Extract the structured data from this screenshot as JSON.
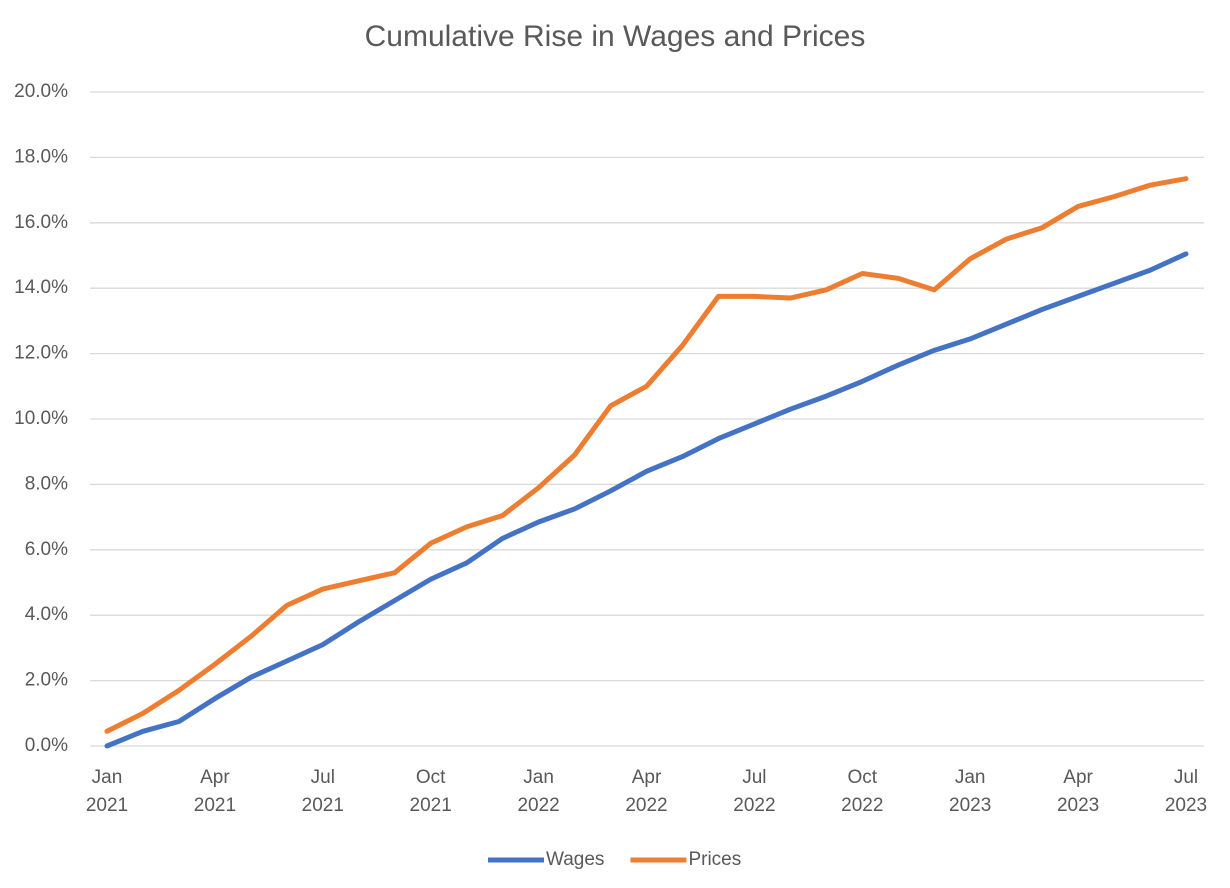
{
  "chart_data": {
    "type": "line",
    "title": "Cumulative Rise in Wages and Prices",
    "categories": [
      "Jan\n2021",
      null,
      null,
      "Apr\n2021",
      null,
      null,
      "Jul\n2021",
      null,
      null,
      "Oct\n2021",
      null,
      null,
      "Jan\n2022",
      null,
      null,
      "Apr\n2022",
      null,
      null,
      "Jul\n2022",
      null,
      null,
      "Oct\n2022",
      null,
      null,
      "Jan\n2023",
      null,
      null,
      "Apr\n2023",
      null,
      null,
      "Jul\n2023"
    ],
    "series": [
      {
        "name": "Wages",
        "color": "#4472c4",
        "values": [
          0.0,
          0.45,
          0.75,
          1.45,
          2.1,
          2.6,
          3.1,
          3.8,
          4.45,
          5.1,
          5.6,
          6.35,
          6.85,
          7.25,
          7.8,
          8.4,
          8.85,
          9.4,
          9.85,
          10.3,
          10.7,
          11.15,
          11.65,
          12.1,
          12.45,
          12.9,
          13.35,
          13.75,
          14.15,
          14.55,
          15.05
        ]
      },
      {
        "name": "Prices",
        "color": "#ed7d31",
        "values": [
          0.45,
          1.0,
          1.7,
          2.5,
          3.35,
          4.3,
          4.8,
          5.05,
          5.3,
          6.2,
          6.7,
          7.05,
          7.9,
          8.9,
          10.4,
          11.0,
          12.25,
          13.75,
          13.75,
          13.7,
          13.95,
          14.45,
          14.3,
          13.95,
          14.9,
          15.5,
          15.85,
          16.5,
          16.8,
          17.15,
          17.35
        ]
      }
    ],
    "ylim": [
      0,
      20
    ],
    "yticks": [
      {
        "value": 0,
        "label": "0.0%"
      },
      {
        "value": 2,
        "label": "2.0%"
      },
      {
        "value": 4,
        "label": "4.0%"
      },
      {
        "value": 6,
        "label": "6.0%"
      },
      {
        "value": 8,
        "label": "8.0%"
      },
      {
        "value": 10,
        "label": "10.0%"
      },
      {
        "value": 12,
        "label": "12.0%"
      },
      {
        "value": 14,
        "label": "14.0%"
      },
      {
        "value": 16,
        "label": "16.0%"
      },
      {
        "value": 18,
        "label": "18.0%"
      },
      {
        "value": 20,
        "label": "20.0%"
      }
    ],
    "grid": true,
    "legend": "bottom"
  }
}
